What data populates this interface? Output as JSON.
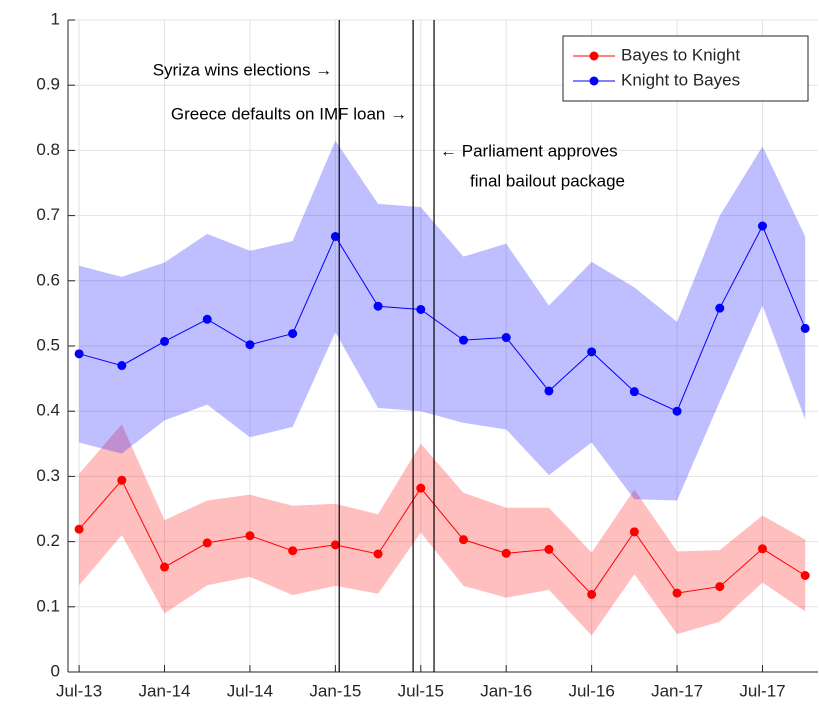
{
  "chart_data": {
    "type": "line",
    "categories": [
      "Jul-13",
      null,
      "Jan-14",
      null,
      "Jul-14",
      null,
      "Jan-15",
      null,
      "Jul-15",
      null,
      "Jan-16",
      null,
      "Jul-16",
      null,
      "Jan-17",
      null,
      "Jul-17",
      null
    ],
    "series": [
      {
        "name": "Bayes to Knight",
        "color": "#ff0000",
        "values": [
          0.219,
          0.294,
          0.161,
          0.198,
          0.209,
          0.186,
          0.195,
          0.181,
          0.282,
          0.203,
          0.182,
          0.188,
          0.119,
          0.215,
          0.121,
          0.131,
          0.189,
          0.148
        ],
        "upper": [
          0.304,
          0.38,
          0.233,
          0.263,
          0.272,
          0.255,
          0.258,
          0.242,
          0.35,
          0.275,
          0.252,
          0.252,
          0.183,
          0.28,
          0.185,
          0.187,
          0.24,
          0.203
        ],
        "lower": [
          0.133,
          0.21,
          0.09,
          0.133,
          0.146,
          0.118,
          0.132,
          0.12,
          0.214,
          0.132,
          0.114,
          0.126,
          0.056,
          0.15,
          0.058,
          0.077,
          0.137,
          0.093
        ]
      },
      {
        "name": "Knight to Bayes",
        "color": "#0000ff",
        "values": [
          0.488,
          0.47,
          0.507,
          0.541,
          0.502,
          0.519,
          0.668,
          0.561,
          0.556,
          0.509,
          0.513,
          0.431,
          0.491,
          0.43,
          0.4,
          0.558,
          0.684,
          0.527
        ],
        "upper": [
          0.623,
          0.606,
          0.628,
          0.672,
          0.646,
          0.661,
          0.815,
          0.718,
          0.713,
          0.637,
          0.657,
          0.562,
          0.629,
          0.59,
          0.537,
          0.7,
          0.806,
          0.668
        ],
        "lower": [
          0.352,
          0.335,
          0.386,
          0.41,
          0.36,
          0.376,
          0.521,
          0.405,
          0.4,
          0.382,
          0.372,
          0.302,
          0.352,
          0.265,
          0.263,
          0.415,
          0.562,
          0.387
        ]
      }
    ],
    "xlim": [
      -0.26,
      17.3
    ],
    "ylim": [
      0,
      1
    ],
    "yticks": [
      0,
      0.1,
      0.2,
      0.3,
      0.4,
      0.5,
      0.6,
      0.7,
      0.8,
      0.9,
      1
    ],
    "grid": true,
    "legend": "northeast",
    "vlines": [
      {
        "x": 6.09,
        "label": [
          "Syriza wins elections →"
        ]
      },
      {
        "x": 7.82,
        "label": [
          "Greece defaults on IMF loan →"
        ]
      },
      {
        "x": 8.31,
        "label": [
          "← Parliament approves",
          "final bailout package"
        ]
      }
    ]
  }
}
